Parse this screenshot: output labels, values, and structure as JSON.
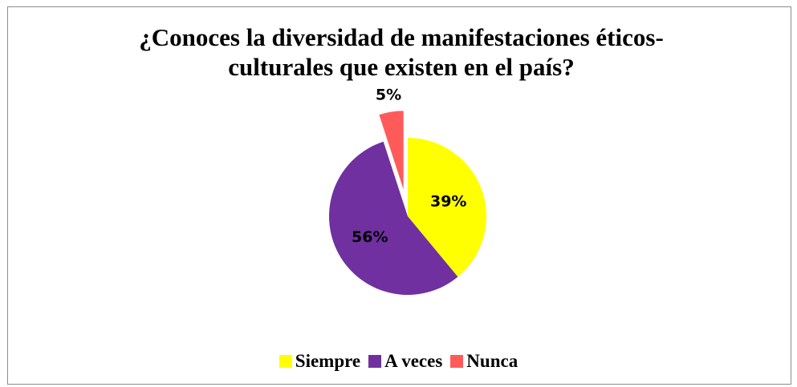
{
  "chart_data": {
    "type": "pie",
    "title": "¿Conoces la diversidad de manifestaciones éticos-culturales que existen en el país?",
    "categories": [
      "Siempre",
      "A veces",
      "Nunca"
    ],
    "values": [
      39,
      56,
      5
    ],
    "value_labels": [
      "39%",
      "56%",
      "5%"
    ],
    "colors": [
      "#FFFF00",
      "#7030A0",
      "#FF5B5B"
    ],
    "exploded": [
      false,
      false,
      true
    ],
    "legend_position": "bottom"
  }
}
